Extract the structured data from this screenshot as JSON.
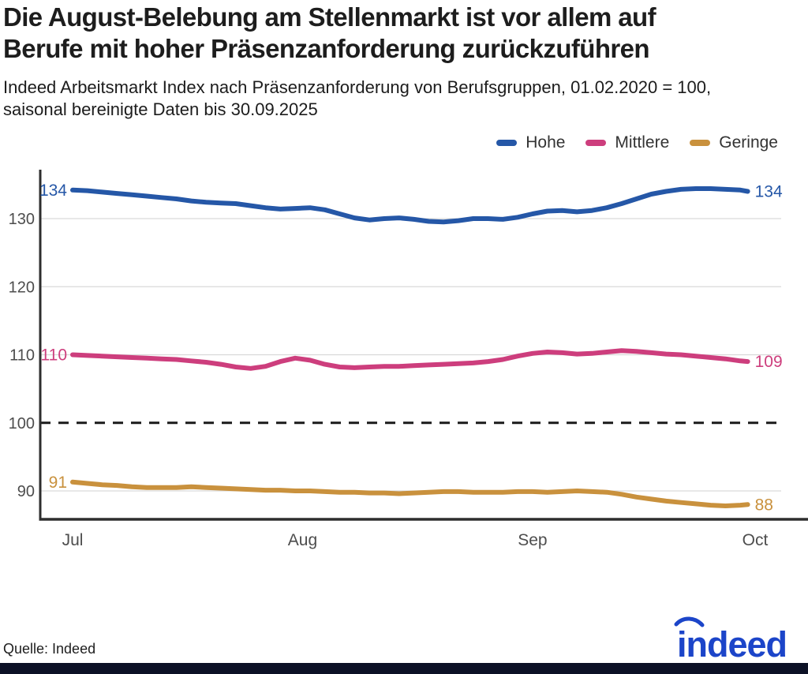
{
  "header": {
    "title_line1": "Die August-Belebung am Stellenmarkt ist vor allem auf",
    "title_line2": "Berufe mit hoher Präsenzanforderung zurückzuführen",
    "subtitle_line1": "Indeed Arbeitsmarkt Index nach Präsenzanforderung von Berufsgruppen, 01.02.2020 = 100,",
    "subtitle_line2": "saisonal bereinigte Daten bis 30.09.2025"
  },
  "legend": {
    "items": [
      {
        "label": "Hohe",
        "color": "#2557a7"
      },
      {
        "label": "Mittlere",
        "color": "#cd3e7d"
      },
      {
        "label": "Geringe",
        "color": "#c9913d"
      }
    ]
  },
  "footer": {
    "source": "Quelle: Indeed",
    "logo_text": "indeed",
    "logo_color": "#1c45c9",
    "bar_color": "#0c1126"
  },
  "chart_data": {
    "type": "line",
    "title": "Die August-Belebung am Stellenmarkt ist vor allem auf Berufe mit hoher Präsenzanforderung zurückzuführen",
    "subtitle": "Indeed Arbeitsmarkt Index nach Präsenzanforderung von Berufsgruppen, 01.02.2020 = 100, saisonal bereinigte Daten bis 30.09.2025",
    "xlabel": "",
    "ylabel": "",
    "grid": true,
    "legend_position": "top-right",
    "ylim": [
      85.7,
      137.2
    ],
    "y_axis": {
      "ticks": [
        130,
        120,
        110,
        100,
        90
      ],
      "dashed_baseline": 100,
      "tick_color": "#4d4d4d",
      "grid_color": "#d9d9d9",
      "dash_color": "#1a1a1a",
      "spine_color": "#2e2e2e"
    },
    "x_axis": {
      "unit": "days since 01.07.2025",
      "ticks": [
        {
          "label": "Jul",
          "day": 0
        },
        {
          "label": "Aug",
          "day": 31
        },
        {
          "label": "Sep",
          "day": 62
        },
        {
          "label": "Oct",
          "day": 92
        }
      ]
    },
    "series": [
      {
        "name": "Hohe",
        "color": "#2557a7",
        "start_label": "134",
        "end_label": "134",
        "points": [
          [
            0,
            134.2
          ],
          [
            2,
            134.1
          ],
          [
            4,
            133.9
          ],
          [
            6,
            133.7
          ],
          [
            8,
            133.5
          ],
          [
            10,
            133.3
          ],
          [
            12,
            133.1
          ],
          [
            14,
            132.9
          ],
          [
            16,
            132.6
          ],
          [
            18,
            132.4
          ],
          [
            20,
            132.3
          ],
          [
            22,
            132.2
          ],
          [
            24,
            131.9
          ],
          [
            26,
            131.6
          ],
          [
            28,
            131.4
          ],
          [
            30,
            131.5
          ],
          [
            32,
            131.6
          ],
          [
            34,
            131.3
          ],
          [
            36,
            130.7
          ],
          [
            38,
            130.1
          ],
          [
            40,
            129.8
          ],
          [
            42,
            130.0
          ],
          [
            44,
            130.1
          ],
          [
            46,
            129.9
          ],
          [
            48,
            129.6
          ],
          [
            50,
            129.5
          ],
          [
            52,
            129.7
          ],
          [
            54,
            130.0
          ],
          [
            56,
            130.0
          ],
          [
            58,
            129.9
          ],
          [
            60,
            130.2
          ],
          [
            62,
            130.7
          ],
          [
            64,
            131.1
          ],
          [
            66,
            131.2
          ],
          [
            68,
            131.0
          ],
          [
            70,
            131.2
          ],
          [
            72,
            131.6
          ],
          [
            74,
            132.2
          ],
          [
            76,
            132.9
          ],
          [
            78,
            133.6
          ],
          [
            80,
            134.0
          ],
          [
            82,
            134.3
          ],
          [
            84,
            134.4
          ],
          [
            86,
            134.4
          ],
          [
            88,
            134.3
          ],
          [
            90,
            134.2
          ],
          [
            91,
            134.0
          ]
        ]
      },
      {
        "name": "Mittlere",
        "color": "#cd3e7d",
        "start_label": "110",
        "end_label": "109",
        "points": [
          [
            0,
            110.0
          ],
          [
            2,
            109.9
          ],
          [
            4,
            109.8
          ],
          [
            6,
            109.7
          ],
          [
            8,
            109.6
          ],
          [
            10,
            109.5
          ],
          [
            12,
            109.4
          ],
          [
            14,
            109.3
          ],
          [
            16,
            109.1
          ],
          [
            18,
            108.9
          ],
          [
            20,
            108.6
          ],
          [
            22,
            108.2
          ],
          [
            24,
            108.0
          ],
          [
            26,
            108.3
          ],
          [
            28,
            109.0
          ],
          [
            30,
            109.5
          ],
          [
            32,
            109.2
          ],
          [
            34,
            108.6
          ],
          [
            36,
            108.2
          ],
          [
            38,
            108.1
          ],
          [
            40,
            108.2
          ],
          [
            42,
            108.3
          ],
          [
            44,
            108.3
          ],
          [
            46,
            108.4
          ],
          [
            48,
            108.5
          ],
          [
            50,
            108.6
          ],
          [
            52,
            108.7
          ],
          [
            54,
            108.8
          ],
          [
            56,
            109.0
          ],
          [
            58,
            109.3
          ],
          [
            60,
            109.8
          ],
          [
            62,
            110.2
          ],
          [
            64,
            110.4
          ],
          [
            66,
            110.3
          ],
          [
            68,
            110.1
          ],
          [
            70,
            110.2
          ],
          [
            72,
            110.4
          ],
          [
            74,
            110.6
          ],
          [
            76,
            110.5
          ],
          [
            78,
            110.3
          ],
          [
            80,
            110.1
          ],
          [
            82,
            110.0
          ],
          [
            84,
            109.8
          ],
          [
            86,
            109.6
          ],
          [
            88,
            109.4
          ],
          [
            90,
            109.1
          ],
          [
            91,
            109.0
          ]
        ]
      },
      {
        "name": "Geringe",
        "color": "#c9913d",
        "start_label": "91",
        "end_label": "88",
        "points": [
          [
            0,
            91.3
          ],
          [
            2,
            91.1
          ],
          [
            4,
            90.9
          ],
          [
            6,
            90.8
          ],
          [
            8,
            90.6
          ],
          [
            10,
            90.5
          ],
          [
            12,
            90.5
          ],
          [
            14,
            90.5
          ],
          [
            16,
            90.6
          ],
          [
            18,
            90.5
          ],
          [
            20,
            90.4
          ],
          [
            22,
            90.3
          ],
          [
            24,
            90.2
          ],
          [
            26,
            90.1
          ],
          [
            28,
            90.1
          ],
          [
            30,
            90.0
          ],
          [
            32,
            90.0
          ],
          [
            34,
            89.9
          ],
          [
            36,
            89.8
          ],
          [
            38,
            89.8
          ],
          [
            40,
            89.7
          ],
          [
            42,
            89.7
          ],
          [
            44,
            89.6
          ],
          [
            46,
            89.7
          ],
          [
            48,
            89.8
          ],
          [
            50,
            89.9
          ],
          [
            52,
            89.9
          ],
          [
            54,
            89.8
          ],
          [
            56,
            89.8
          ],
          [
            58,
            89.8
          ],
          [
            60,
            89.9
          ],
          [
            62,
            89.9
          ],
          [
            64,
            89.8
          ],
          [
            66,
            89.9
          ],
          [
            68,
            90.0
          ],
          [
            70,
            89.9
          ],
          [
            72,
            89.8
          ],
          [
            74,
            89.5
          ],
          [
            76,
            89.1
          ],
          [
            78,
            88.8
          ],
          [
            80,
            88.5
          ],
          [
            82,
            88.3
          ],
          [
            84,
            88.1
          ],
          [
            86,
            87.9
          ],
          [
            88,
            87.8
          ],
          [
            90,
            87.9
          ],
          [
            91,
            88.0
          ]
        ]
      }
    ]
  }
}
